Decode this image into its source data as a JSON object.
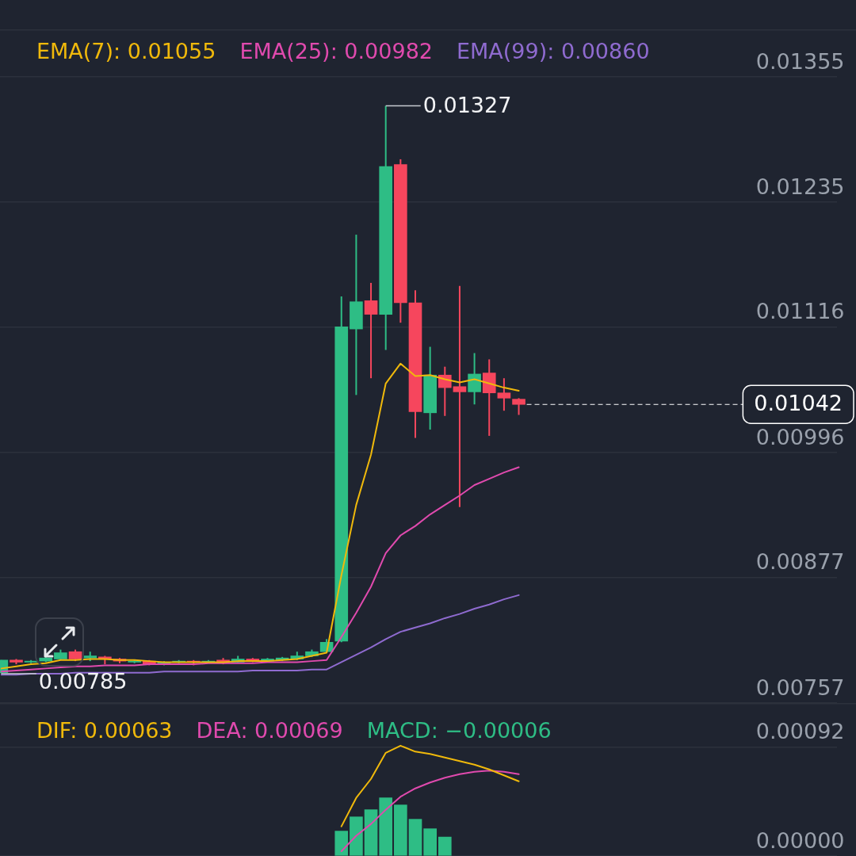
{
  "chart_data": [
    {
      "type": "candlestick",
      "categories": [
        null,
        null,
        null,
        null,
        null,
        null,
        null,
        null,
        null,
        null,
        null,
        null,
        null,
        null,
        null,
        null,
        null,
        null,
        null,
        null,
        null,
        null,
        null,
        null,
        null,
        null,
        null,
        null,
        null,
        null,
        null,
        null,
        null,
        null,
        null,
        null,
        null,
        null,
        null,
        null,
        null,
        null,
        null,
        null,
        null,
        null,
        null,
        null,
        null,
        null,
        null,
        null,
        null,
        null,
        null,
        null,
        null
      ],
      "ohlc": [
        [
          0.00786,
          0.00798,
          0.00785,
          0.00798
        ],
        [
          0.00798,
          0.00799,
          0.00794,
          0.00796
        ],
        [
          0.00796,
          0.00798,
          0.00795,
          0.00797
        ],
        [
          0.00797,
          0.00801,
          0.00796,
          0.008
        ],
        [
          0.00799,
          0.00808,
          0.00798,
          0.00805
        ],
        [
          0.00806,
          0.00808,
          0.00797,
          0.00799
        ],
        [
          0.008,
          0.00806,
          0.00797,
          0.00802
        ],
        [
          0.00801,
          0.00802,
          0.00794,
          0.00799
        ],
        [
          0.00799,
          0.008,
          0.00795,
          0.00797
        ],
        [
          0.00796,
          0.00798,
          0.00795,
          0.00797
        ],
        [
          0.00797,
          0.00798,
          0.00793,
          0.00794
        ],
        [
          0.00795,
          0.00797,
          0.00793,
          0.00796
        ],
        [
          0.00796,
          0.00798,
          0.00795,
          0.00797
        ],
        [
          0.00797,
          0.00798,
          0.00793,
          0.00796
        ],
        [
          0.00796,
          0.00798,
          0.00795,
          0.00797
        ],
        [
          0.00798,
          0.008,
          0.00794,
          0.00795
        ],
        [
          0.00796,
          0.00802,
          0.00795,
          0.00799
        ],
        [
          0.00799,
          0.008,
          0.00796,
          0.00797
        ],
        [
          0.00797,
          0.008,
          0.00796,
          0.00799
        ],
        [
          0.00798,
          0.00801,
          0.00797,
          0.008
        ],
        [
          0.00799,
          0.00806,
          0.00798,
          0.00802
        ],
        [
          0.00802,
          0.00808,
          0.00801,
          0.00806
        ],
        [
          0.00806,
          0.00818,
          0.00805,
          0.00815
        ],
        [
          0.00816,
          0.01145,
          0.00815,
          0.01116
        ],
        [
          0.01114,
          0.01204,
          0.01051,
          0.0114
        ],
        [
          0.01141,
          0.01158,
          0.01067,
          0.01128
        ],
        [
          0.01128,
          0.01327,
          0.01094,
          0.01269
        ],
        [
          0.01271,
          0.01276,
          0.0112,
          0.01139
        ],
        [
          0.01139,
          0.01151,
          0.0101,
          0.01035
        ],
        [
          0.01034,
          0.01097,
          0.01018,
          0.0107
        ],
        [
          0.0107,
          0.01078,
          0.01031,
          0.01058
        ],
        [
          0.01059,
          0.01155,
          0.00944,
          0.01054
        ],
        [
          0.01054,
          0.01091,
          0.01042,
          0.01071
        ],
        [
          0.01072,
          0.01085,
          0.01012,
          0.01053
        ],
        [
          0.01053,
          0.01067,
          0.01036,
          0.01048
        ],
        [
          0.01047,
          0.01048,
          0.01032,
          0.01042
        ],
        null,
        null,
        null,
        null,
        null,
        null,
        null,
        null,
        null,
        null,
        null,
        null,
        null,
        null,
        null,
        null,
        null,
        null,
        null,
        null,
        null
      ],
      "colors": [
        "#2ebd85",
        "#f6465d",
        "#2ebd85",
        "#2ebd85",
        "#2ebd85",
        "#f6465d",
        "#2ebd85",
        "#f6465d",
        "#f6465d",
        "#2ebd85",
        "#f6465d",
        "#2ebd85",
        "#2ebd85",
        "#f6465d",
        "#2ebd85",
        "#f6465d",
        "#2ebd85",
        "#f6465d",
        "#2ebd85",
        "#2ebd85",
        "#2ebd85",
        "#2ebd85",
        "#2ebd85",
        "#2ebd85",
        "#2ebd85",
        "#f6465d",
        "#2ebd85",
        "#f6465d",
        "#f6465d",
        "#2ebd85",
        "#f6465d",
        "#f6465d",
        "#2ebd85",
        "#f6465d",
        "#f6465d",
        "#f6465d",
        null,
        null,
        null,
        null,
        null,
        null,
        null,
        null,
        null,
        null,
        null,
        null,
        null,
        null,
        null,
        null,
        null,
        null,
        null,
        null,
        null
      ],
      "series": [
        {
          "name": "EMA(7): 0.01055",
          "type": "line",
          "color": "#f0b90b",
          "values": [
            0.0079,
            0.00792,
            0.00794,
            0.00795,
            0.00798,
            0.00798,
            0.00799,
            0.00799,
            0.00798,
            0.00798,
            0.00797,
            0.00796,
            0.00796,
            0.00796,
            0.00796,
            0.00796,
            0.00797,
            0.00797,
            0.00797,
            0.00798,
            0.00799,
            0.00802,
            0.00805,
            0.00879,
            0.00946,
            0.00994,
            0.01062,
            0.01081,
            0.01069,
            0.0107,
            0.01066,
            0.01063,
            0.01066,
            0.01062,
            0.01058,
            0.01055,
            null,
            null,
            null,
            null,
            null,
            null,
            null,
            null,
            null,
            null,
            null,
            null,
            null,
            null,
            null,
            null,
            null,
            null,
            null,
            null,
            null
          ]
        },
        {
          "name": "EMA(25): 0.00982",
          "type": "line",
          "color": "#e04aae",
          "values": [
            0.00787,
            0.00788,
            0.00789,
            0.0079,
            0.00791,
            0.00792,
            0.00792,
            0.00793,
            0.00793,
            0.00793,
            0.00794,
            0.00794,
            0.00794,
            0.00794,
            0.00795,
            0.00795,
            0.00795,
            0.00795,
            0.00796,
            0.00796,
            0.00796,
            0.00797,
            0.00798,
            0.0082,
            0.00843,
            0.00868,
            0.009,
            0.00917,
            0.00926,
            0.00937,
            0.00946,
            0.00955,
            0.00965,
            0.00971,
            0.00977,
            0.00982,
            null,
            null,
            null,
            null,
            null,
            null,
            null,
            null,
            null,
            null,
            null,
            null,
            null,
            null,
            null,
            null,
            null,
            null,
            null,
            null,
            null
          ]
        },
        {
          "name": "EMA(99): 0.00860",
          "type": "line",
          "color": "#8f6bd0",
          "values": [
            0.00784,
            0.00784,
            0.00785,
            0.00785,
            0.00785,
            0.00786,
            0.00786,
            0.00786,
            0.00786,
            0.00786,
            0.00786,
            0.00787,
            0.00787,
            0.00787,
            0.00787,
            0.00787,
            0.00787,
            0.00788,
            0.00788,
            0.00788,
            0.00788,
            0.00789,
            0.00789,
            0.00796,
            0.00803,
            0.0081,
            0.00818,
            0.00825,
            0.00829,
            0.00833,
            0.00838,
            0.00842,
            0.00847,
            0.00851,
            0.00856,
            0.0086,
            null,
            null,
            null,
            null,
            null,
            null,
            null,
            null,
            null,
            null,
            null,
            null,
            null,
            null,
            null,
            null,
            null,
            null,
            null,
            null,
            null
          ]
        }
      ],
      "ylim": [
        0.00757,
        0.014
      ],
      "yticks": [
        0.01355,
        0.01235,
        0.01116,
        0.00996,
        0.00877,
        0.00757
      ],
      "grid": "y",
      "legend": "top left",
      "tick_labels": "y",
      "annotations": [
        "0.01327",
        "0.00785"
      ],
      "ref_lines": [
        {
          "axis": "y",
          "value": 0.01042,
          "label": "0.01042",
          "color": "#ffffff",
          "line_style": "dashed"
        }
      ]
    },
    {
      "type": "bar",
      "categories": [
        null,
        null,
        null,
        null,
        null,
        null,
        null,
        null,
        null,
        null,
        null,
        null,
        null,
        null,
        null,
        null,
        null,
        null,
        null,
        null,
        null,
        null,
        null,
        null,
        null,
        null,
        null,
        null,
        null,
        null,
        null,
        null,
        null,
        null,
        null,
        null,
        null,
        null,
        null,
        null,
        null,
        null,
        null,
        null,
        null,
        null,
        null,
        null,
        null,
        null,
        null,
        null,
        null,
        null,
        null,
        null,
        null
      ],
      "series": [
        {
          "name": "DIF: 0.00063",
          "type": "line",
          "color": "#f0b90b",
          "values": [
            null,
            null,
            null,
            null,
            null,
            null,
            null,
            null,
            null,
            null,
            null,
            null,
            null,
            null,
            null,
            null,
            null,
            null,
            null,
            null,
            null,
            null,
            null,
            0.00025,
            0.00049,
            0.00065,
            0.00087,
            0.00093,
            0.00088,
            0.00086,
            0.00083,
            0.0008,
            0.00077,
            0.00073,
            0.00068,
            0.00063,
            null,
            null,
            null,
            null,
            null,
            null,
            null,
            null,
            null,
            null,
            null,
            null,
            null,
            null,
            null,
            null,
            null,
            null,
            null,
            null,
            null
          ]
        },
        {
          "name": "DEA: 0.00069",
          "type": "line",
          "color": "#e04aae",
          "values": [
            null,
            null,
            null,
            null,
            null,
            null,
            null,
            null,
            null,
            null,
            null,
            null,
            null,
            null,
            null,
            null,
            null,
            null,
            null,
            null,
            null,
            null,
            null,
            4e-05,
            0.00017,
            0.00027,
            0.00039,
            0.0005,
            0.00057,
            0.00062,
            0.00066,
            0.00069,
            0.00071,
            0.00072,
            0.00071,
            0.00069,
            null,
            null,
            null,
            null,
            null,
            null,
            null,
            null,
            null,
            null,
            null,
            null,
            null,
            null,
            null,
            null,
            null,
            null,
            null,
            null,
            null
          ]
        },
        {
          "name": "MACD: −0.00006",
          "type": "bar",
          "color": "#2ebd85",
          "values": [
            null,
            null,
            null,
            null,
            null,
            null,
            null,
            null,
            null,
            null,
            null,
            null,
            null,
            null,
            null,
            null,
            null,
            null,
            null,
            null,
            null,
            null,
            null,
            0.00021,
            0.00033,
            0.00039,
            0.00049,
            0.00043,
            0.00031,
            0.00023,
            0.00016,
            null,
            null,
            null,
            null,
            null,
            null,
            null,
            null,
            null,
            null,
            null,
            null,
            null,
            null,
            null,
            null,
            null,
            null,
            null,
            null,
            null,
            null,
            null,
            null,
            null,
            null
          ]
        }
      ],
      "ylim": [
        0,
        0.00129
      ],
      "yticks": [
        0.00092,
        {
          "value": 0,
          "label": "0.00000"
        }
      ],
      "grid": "y",
      "legend": "top left",
      "tick_labels": "y"
    }
  ]
}
